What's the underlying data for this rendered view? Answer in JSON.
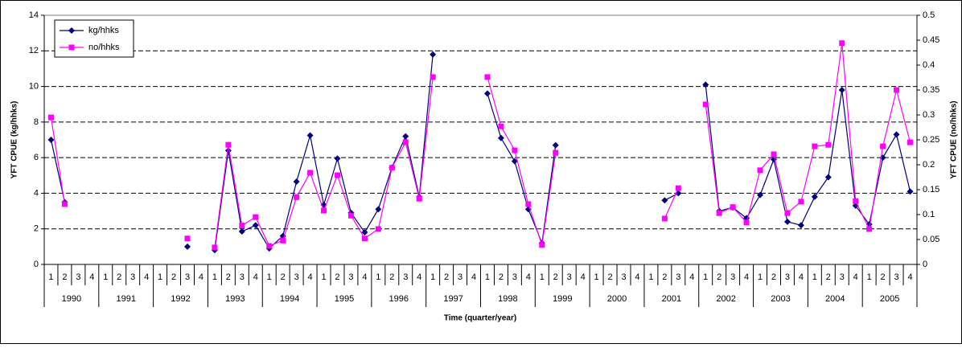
{
  "chart_data": {
    "type": "line",
    "x_label": "Time (quarter/year)",
    "y_label": "YFT CPUE (kg/hhks)",
    "y2_label": "YFT CPUE (no/hhks)",
    "categories": [
      "1",
      "2",
      "3",
      "4",
      "1",
      "2",
      "3",
      "4",
      "1",
      "2",
      "3",
      "4",
      "1",
      "2",
      "3",
      "4",
      "1",
      "2",
      "3",
      "4",
      "1",
      "2",
      "3",
      "4",
      "1",
      "2",
      "3",
      "4",
      "1",
      "2",
      "3",
      "4",
      "1",
      "2",
      "3",
      "4",
      "1",
      "2",
      "3",
      "4",
      "1",
      "2",
      "3",
      "4",
      "1",
      "2",
      "3",
      "4",
      "1",
      "2",
      "3",
      "4",
      "1",
      "2",
      "3",
      "4",
      "1",
      "2",
      "3",
      "4",
      "1",
      "2",
      "3",
      "4"
    ],
    "x_groups": [
      "1990",
      "1991",
      "1992",
      "1993",
      "1994",
      "1995",
      "1996",
      "1997",
      "1998",
      "1999",
      "2000",
      "2001",
      "2002",
      "2003",
      "2004",
      "2005"
    ],
    "series": [
      {
        "name": "kg/hhks",
        "color": "#000080",
        "marker": "diamond",
        "axis": "y",
        "values": [
          7.0,
          3.5,
          null,
          null,
          null,
          null,
          null,
          null,
          null,
          null,
          1.0,
          null,
          0.8,
          6.4,
          1.85,
          2.2,
          0.9,
          1.6,
          4.65,
          7.25,
          3.35,
          5.95,
          2.9,
          1.8,
          3.1,
          5.45,
          7.2,
          3.8,
          11.8,
          null,
          null,
          null,
          9.6,
          7.1,
          5.8,
          3.1,
          1.2,
          6.7,
          null,
          null,
          null,
          null,
          null,
          null,
          null,
          3.6,
          4.0,
          null,
          10.1,
          3.0,
          3.2,
          2.6,
          3.9,
          5.9,
          2.4,
          2.2,
          3.8,
          4.9,
          9.8,
          3.3,
          2.25,
          6.0,
          7.3,
          4.1
        ]
      },
      {
        "name": "no/hhks",
        "color": "#ff00ff",
        "marker": "square",
        "axis": "y2",
        "values": [
          0.295,
          0.121,
          null,
          null,
          null,
          null,
          null,
          null,
          null,
          null,
          0.052,
          null,
          0.034,
          0.24,
          0.078,
          0.095,
          0.037,
          0.048,
          0.135,
          0.184,
          0.108,
          0.179,
          0.098,
          0.052,
          0.071,
          0.194,
          0.245,
          0.132,
          0.376,
          null,
          null,
          null,
          0.376,
          0.277,
          0.229,
          0.121,
          0.039,
          0.224,
          null,
          null,
          null,
          null,
          null,
          null,
          null,
          0.092,
          0.153,
          null,
          0.321,
          0.103,
          0.115,
          0.084,
          0.189,
          0.221,
          0.103,
          0.126,
          0.237,
          0.24,
          0.444,
          0.127,
          0.071,
          0.237,
          0.35,
          0.245
        ]
      }
    ],
    "ylim": [
      0,
      14
    ],
    "yticks": [
      0,
      2,
      4,
      6,
      8,
      10,
      12,
      14
    ],
    "y2lim": [
      0,
      0.5
    ],
    "y2ticks": [
      0,
      0.05,
      0.1,
      0.15,
      0.2,
      0.25,
      0.3,
      0.35,
      0.4,
      0.45,
      0.5
    ],
    "grid": true,
    "legend": "upper-left"
  }
}
